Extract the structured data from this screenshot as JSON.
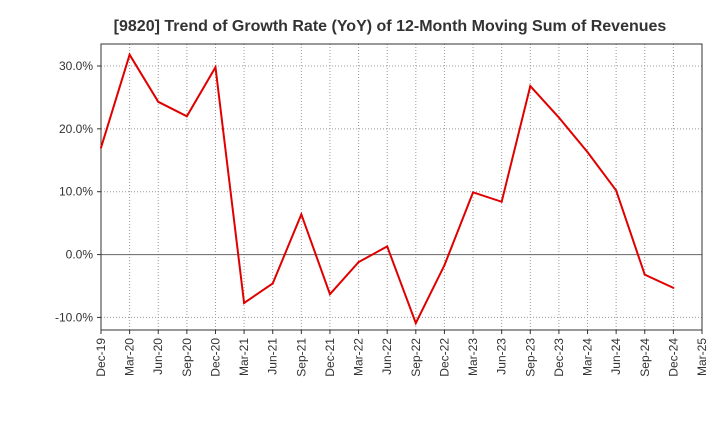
{
  "chart_data": {
    "type": "line",
    "title": "[9820]  Trend of Growth Rate (YoY) of 12-Month Moving Sum of Revenues",
    "xlabel": "",
    "ylabel": "",
    "x_ticks": [
      "Dec-19",
      "Mar-20",
      "Jun-20",
      "Sep-20",
      "Dec-20",
      "Mar-21",
      "Jun-21",
      "Sep-21",
      "Dec-21",
      "Mar-22",
      "Jun-22",
      "Sep-22",
      "Dec-22",
      "Mar-23",
      "Jun-23",
      "Sep-23",
      "Dec-23",
      "Mar-24",
      "Jun-24",
      "Sep-24",
      "Dec-24",
      "Mar-25"
    ],
    "y_ticks": [
      "30.0%",
      "20.0%",
      "10.0%",
      "0.0%",
      "-10.0%"
    ],
    "y_tick_values": [
      30,
      20,
      10,
      0,
      -10
    ],
    "ylim": [
      -12,
      33.5
    ],
    "grid": true,
    "series_color": "#e00000",
    "series": [
      {
        "values": [
          17.0,
          31.8,
          24.3,
          22.0,
          29.8,
          -7.7,
          -4.6,
          6.4,
          -6.3,
          -1.2,
          1.3,
          -10.9,
          -1.7,
          9.9,
          8.4,
          26.8,
          21.8,
          16.3,
          10.2,
          -3.2,
          -5.3
        ]
      }
    ]
  }
}
